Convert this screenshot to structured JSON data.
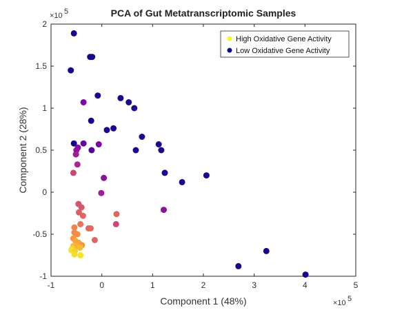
{
  "chart_data": {
    "type": "scatter",
    "title": "PCA of Gut Metatranscriptomic Samples",
    "xlabel": "Component 1 (48%)",
    "ylabel": "Component 2 (28%)",
    "x_exponent_label": "×10",
    "x_exponent_power": "5",
    "y_exponent_label": "×10",
    "y_exponent_power": "5",
    "xlim": [
      -100000,
      500000
    ],
    "ylim": [
      -100000,
      200000
    ],
    "xticks": [
      -100000,
      0,
      100000,
      200000,
      300000,
      400000,
      500000
    ],
    "xtick_labels": [
      "-1",
      "0",
      "1",
      "2",
      "3",
      "4",
      "5"
    ],
    "yticks": [
      -100000,
      -50000,
      0,
      50000,
      100000,
      150000,
      200000
    ],
    "ytick_labels": [
      "-1",
      "-0.5",
      "0",
      "0.5",
      "1",
      "1.5",
      "2"
    ],
    "grid": false,
    "legend_position": "top-right",
    "legend": [
      {
        "label": "High Oxidative Gene Activity",
        "color": "#f0f921"
      },
      {
        "label": "Low Oxidative Gene Activity",
        "color": "#0d0887"
      }
    ],
    "colormap": "plasma",
    "color_value_meaning": "oxidative gene activity level (0 = low, 1 = high)",
    "points": [
      {
        "x": -55000,
        "y": 189000,
        "c": 0.02
      },
      {
        "x": -61000,
        "y": 145000,
        "c": 0.02
      },
      {
        "x": -23000,
        "y": 161000,
        "c": 0.02
      },
      {
        "x": -19000,
        "y": 161000,
        "c": 0.02
      },
      {
        "x": -8000,
        "y": 115000,
        "c": 0.03
      },
      {
        "x": 37000,
        "y": 112000,
        "c": 0.03
      },
      {
        "x": 53000,
        "y": 107000,
        "c": 0.03
      },
      {
        "x": 64000,
        "y": 100000,
        "c": 0.05
      },
      {
        "x": -36000,
        "y": 107000,
        "c": 0.25
      },
      {
        "x": -21000,
        "y": 85000,
        "c": 0.02
      },
      {
        "x": 23000,
        "y": 76000,
        "c": 0.03
      },
      {
        "x": 10000,
        "y": 74000,
        "c": 0.03
      },
      {
        "x": 79000,
        "y": 66000,
        "c": 0.03
      },
      {
        "x": 112000,
        "y": 57000,
        "c": 0.03
      },
      {
        "x": 117000,
        "y": 50000,
        "c": 0.03
      },
      {
        "x": 67000,
        "y": 50000,
        "c": 0.03
      },
      {
        "x": -55000,
        "y": 58000,
        "c": 0.02
      },
      {
        "x": -36000,
        "y": 58000,
        "c": 0.2
      },
      {
        "x": -6000,
        "y": 57000,
        "c": 0.25
      },
      {
        "x": -47000,
        "y": 53000,
        "c": 0.28
      },
      {
        "x": -50000,
        "y": 50000,
        "c": 0.3
      },
      {
        "x": -20000,
        "y": 50000,
        "c": 0.15
      },
      {
        "x": -51000,
        "y": 45000,
        "c": 0.35
      },
      {
        "x": -48000,
        "y": 33000,
        "c": 0.38
      },
      {
        "x": 124000,
        "y": 23000,
        "c": 0.03
      },
      {
        "x": -56000,
        "y": 23000,
        "c": 0.5
      },
      {
        "x": 4000,
        "y": 17000,
        "c": 0.3
      },
      {
        "x": 158000,
        "y": 12000,
        "c": 0.03
      },
      {
        "x": 206000,
        "y": 20000,
        "c": 0.03
      },
      {
        "x": -1000,
        "y": -1000,
        "c": 0.35
      },
      {
        "x": -46000,
        "y": -14000,
        "c": 0.55
      },
      {
        "x": 122000,
        "y": -21000,
        "c": 0.3
      },
      {
        "x": -40000,
        "y": -18000,
        "c": 0.55
      },
      {
        "x": -45000,
        "y": -24000,
        "c": 0.58
      },
      {
        "x": -37000,
        "y": -28000,
        "c": 0.6
      },
      {
        "x": 29000,
        "y": -26000,
        "c": 0.6
      },
      {
        "x": 28000,
        "y": -38000,
        "c": 0.5
      },
      {
        "x": -42000,
        "y": -38000,
        "c": 0.65
      },
      {
        "x": -26000,
        "y": -43000,
        "c": 0.6
      },
      {
        "x": -22000,
        "y": -43000,
        "c": 0.62
      },
      {
        "x": -54000,
        "y": -42000,
        "c": 0.7
      },
      {
        "x": -54000,
        "y": -48000,
        "c": 0.72
      },
      {
        "x": -48000,
        "y": -50000,
        "c": 0.72
      },
      {
        "x": -56000,
        "y": -55000,
        "c": 0.75
      },
      {
        "x": -14000,
        "y": -57000,
        "c": 0.6
      },
      {
        "x": -52000,
        "y": -58000,
        "c": 0.8
      },
      {
        "x": -46000,
        "y": -60000,
        "c": 0.78
      },
      {
        "x": -43000,
        "y": -62000,
        "c": 0.8
      },
      {
        "x": -39000,
        "y": -63000,
        "c": 0.75
      },
      {
        "x": -56000,
        "y": -64000,
        "c": 0.85
      },
      {
        "x": -50000,
        "y": -64000,
        "c": 0.82
      },
      {
        "x": -58000,
        "y": -67000,
        "c": 0.9
      },
      {
        "x": -43000,
        "y": -66000,
        "c": 0.85
      },
      {
        "x": -60000,
        "y": -69000,
        "c": 0.95
      },
      {
        "x": -53000,
        "y": -70000,
        "c": 0.9
      },
      {
        "x": -54000,
        "y": -74000,
        "c": 0.93
      },
      {
        "x": -42000,
        "y": -75000,
        "c": 0.95
      },
      {
        "x": 324000,
        "y": -70000,
        "c": 0.02
      },
      {
        "x": 269000,
        "y": -88000,
        "c": 0.02
      },
      {
        "x": 401000,
        "y": -98000,
        "c": 0.02
      }
    ]
  }
}
